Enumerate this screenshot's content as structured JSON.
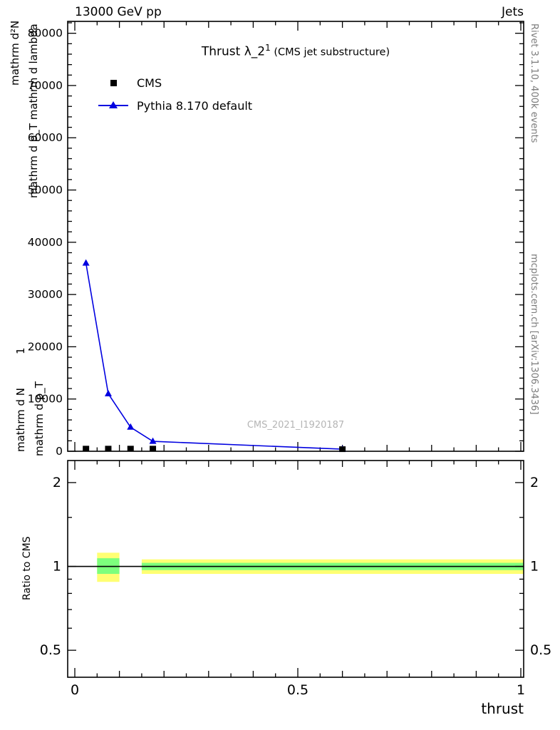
{
  "header": {
    "left": "13000 GeV pp",
    "right": "Jets"
  },
  "title": {
    "base": "Thrust λ_2",
    "sup": "1",
    "suffix": " (CMS jet substructure)"
  },
  "watermark": "CMS_2021_I1920187",
  "side_notes": {
    "rivet": "Rivet 3.1.10, 400k events",
    "mcplots": "mcplots.cern.ch [arXiv:1306.3436]"
  },
  "axis_labels": {
    "y_fragments": [
      "mathrm d²N",
      "mathrm d p_T mathrm d lambda",
      "1",
      "mathrm d N",
      "mathrm d p_T"
    ],
    "ratio_y": "Ratio to CMS",
    "x": "thrust"
  },
  "chart_data": [
    {
      "id": "main",
      "type": "line",
      "xlim": [
        0,
        1
      ],
      "ylim": [
        0,
        82000
      ],
      "xticks": [
        0,
        0.5,
        1
      ],
      "yticks": [
        0,
        10000,
        20000,
        30000,
        40000,
        50000,
        60000,
        70000,
        80000
      ],
      "x_minor_step": 0.05,
      "y_minor_step": 2000,
      "grid": false,
      "legend_position": "upper-left",
      "series": [
        {
          "name": "CMS",
          "marker": "square",
          "color": "#000000",
          "line": false,
          "x": [
            0.025,
            0.075,
            0.125,
            0.175,
            0.6
          ],
          "y": [
            500,
            500,
            500,
            500,
            400
          ]
        },
        {
          "name": "Pythia 8.170 default",
          "marker": "triangle",
          "color": "#0000e0",
          "line": true,
          "x": [
            0.025,
            0.075,
            0.125,
            0.175,
            0.6
          ],
          "y": [
            36000,
            11000,
            4600,
            1900,
            400
          ]
        }
      ]
    },
    {
      "id": "ratio",
      "type": "band",
      "scale": "log",
      "xlim": [
        0,
        1
      ],
      "ylim": [
        0.4,
        2.4
      ],
      "yticks": [
        0.5,
        1,
        2
      ],
      "yticks_minor": [
        0.6,
        0.7,
        0.8,
        0.9,
        1.5
      ],
      "reference_line": 1,
      "bands": [
        {
          "x0": 0.05,
          "x1": 0.1,
          "outer": [
            0.88,
            1.12
          ],
          "inner": [
            0.94,
            1.07
          ]
        },
        {
          "x0": 0.15,
          "x1": 1.0,
          "outer": [
            0.94,
            1.06
          ],
          "inner": [
            0.97,
            1.03
          ]
        }
      ],
      "colors": {
        "outer": "#ffff73",
        "inner": "#7dff7d",
        "reference": "#000000"
      }
    }
  ]
}
